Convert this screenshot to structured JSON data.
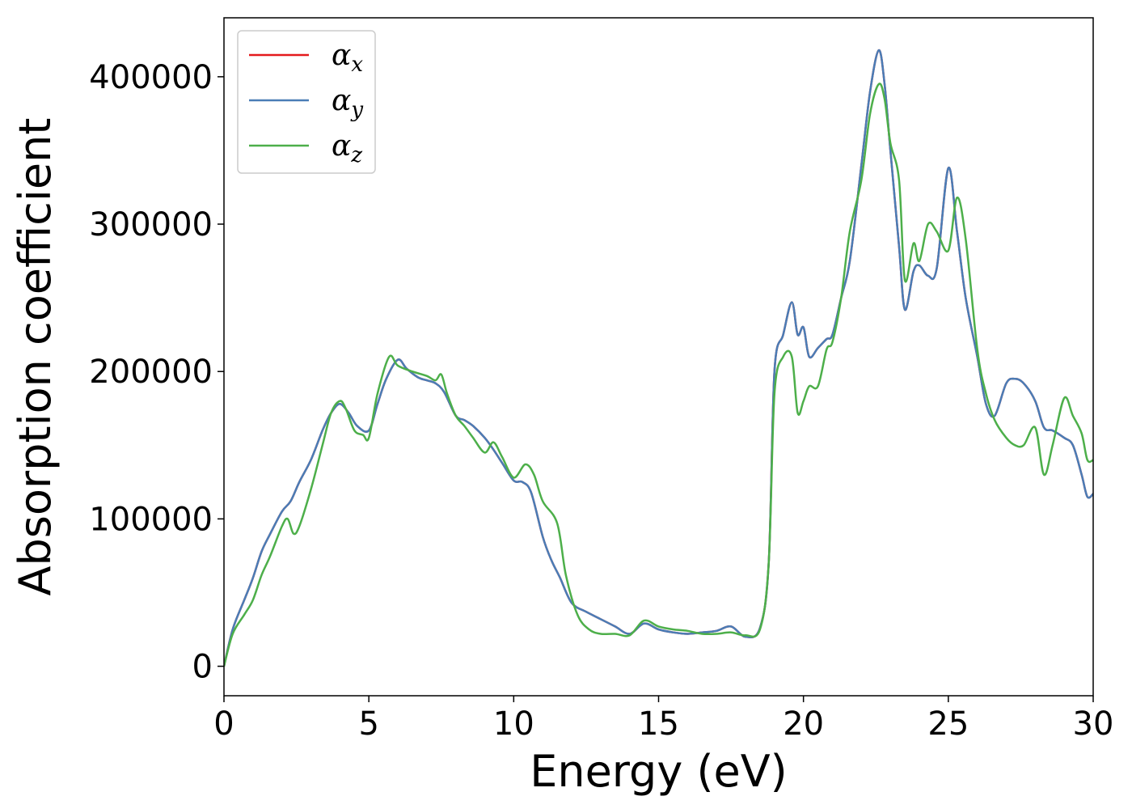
{
  "chart_data": {
    "type": "line",
    "xlabel": "Energy (eV)",
    "ylabel": "Absorption coefficient",
    "xlim": [
      0,
      30
    ],
    "ylim": [
      -20000,
      440000
    ],
    "xticks": [
      0,
      5,
      10,
      15,
      20,
      25,
      30
    ],
    "yticks": [
      0,
      100000,
      200000,
      300000,
      400000
    ],
    "grid": false,
    "legend_position": "top-left",
    "series": [
      {
        "name": "α",
        "sub": "x",
        "color": "#e41a1c",
        "x": [
          0,
          0.3,
          0.7,
          1.0,
          1.3,
          1.6,
          2.0,
          2.3,
          2.6,
          3.0,
          3.4,
          3.7,
          4.0,
          4.3,
          4.6,
          5.0,
          5.3,
          5.6,
          6.0,
          6.3,
          6.7,
          7.0,
          7.3,
          7.6,
          8.0,
          8.3,
          8.6,
          9.0,
          9.3,
          9.6,
          10.0,
          10.3,
          10.6,
          11.0,
          11.3,
          11.6,
          12.0,
          12.5,
          13.0,
          13.5,
          14.0,
          14.5,
          15.0,
          15.5,
          16.0,
          16.5,
          17.0,
          17.5,
          18.0,
          18.5,
          18.8,
          19.0,
          19.3,
          19.6,
          19.8,
          20.0,
          20.2,
          20.5,
          20.8,
          21.0,
          21.3,
          21.6,
          22.0,
          22.3,
          22.6,
          22.8,
          23.0,
          23.3,
          23.5,
          23.8,
          24.0,
          24.3,
          24.6,
          25.0,
          25.3,
          25.6,
          26.0,
          26.3,
          26.6,
          27.0,
          27.3,
          27.6,
          28.0,
          28.3,
          28.6,
          29.0,
          29.3,
          29.6,
          29.8,
          30.0
        ],
        "y": [
          0,
          25000,
          45000,
          60000,
          78000,
          90000,
          105000,
          112000,
          125000,
          140000,
          160000,
          172000,
          178000,
          172000,
          163000,
          160000,
          178000,
          195000,
          208000,
          202000,
          196000,
          194000,
          192000,
          186000,
          170000,
          167000,
          163000,
          155000,
          147000,
          138000,
          126000,
          125000,
          118000,
          88000,
          72000,
          60000,
          43000,
          37000,
          32000,
          27000,
          22000,
          29000,
          25000,
          23000,
          22000,
          23000,
          24000,
          27000,
          20000,
          26000,
          70000,
          200000,
          225000,
          247000,
          225000,
          230000,
          210000,
          216000,
          222000,
          225000,
          250000,
          275000,
          340000,
          390000,
          418000,
          395000,
          350000,
          285000,
          242000,
          268000,
          272000,
          265000,
          270000,
          338000,
          295000,
          250000,
          210000,
          178000,
          170000,
          192000,
          195000,
          192000,
          180000,
          162000,
          160000,
          155000,
          150000,
          130000,
          115000,
          117000
        ]
      },
      {
        "name": "α",
        "sub": "y",
        "color": "#4a7db6",
        "x": [
          0,
          0.3,
          0.7,
          1.0,
          1.3,
          1.6,
          2.0,
          2.3,
          2.6,
          3.0,
          3.4,
          3.7,
          4.0,
          4.3,
          4.6,
          5.0,
          5.3,
          5.6,
          6.0,
          6.3,
          6.7,
          7.0,
          7.3,
          7.6,
          8.0,
          8.3,
          8.6,
          9.0,
          9.3,
          9.6,
          10.0,
          10.3,
          10.6,
          11.0,
          11.3,
          11.6,
          12.0,
          12.5,
          13.0,
          13.5,
          14.0,
          14.5,
          15.0,
          15.5,
          16.0,
          16.5,
          17.0,
          17.5,
          18.0,
          18.5,
          18.8,
          19.0,
          19.3,
          19.6,
          19.8,
          20.0,
          20.2,
          20.5,
          20.8,
          21.0,
          21.3,
          21.6,
          22.0,
          22.3,
          22.6,
          22.8,
          23.0,
          23.3,
          23.5,
          23.8,
          24.0,
          24.3,
          24.6,
          25.0,
          25.3,
          25.6,
          26.0,
          26.3,
          26.6,
          27.0,
          27.3,
          27.6,
          28.0,
          28.3,
          28.6,
          29.0,
          29.3,
          29.6,
          29.8,
          30.0
        ],
        "y": [
          0,
          25000,
          45000,
          60000,
          78000,
          90000,
          105000,
          112000,
          125000,
          140000,
          160000,
          172000,
          178000,
          172000,
          163000,
          160000,
          178000,
          195000,
          208000,
          202000,
          196000,
          194000,
          192000,
          186000,
          170000,
          167000,
          163000,
          155000,
          147000,
          138000,
          126000,
          125000,
          118000,
          88000,
          72000,
          60000,
          43000,
          37000,
          32000,
          27000,
          22000,
          29000,
          25000,
          23000,
          22000,
          23000,
          24000,
          27000,
          20000,
          26000,
          70000,
          200000,
          225000,
          247000,
          225000,
          230000,
          210000,
          216000,
          222000,
          225000,
          250000,
          275000,
          340000,
          390000,
          418000,
          395000,
          350000,
          285000,
          242000,
          268000,
          272000,
          265000,
          270000,
          338000,
          295000,
          250000,
          210000,
          178000,
          170000,
          192000,
          195000,
          192000,
          180000,
          162000,
          160000,
          155000,
          150000,
          130000,
          115000,
          117000
        ]
      },
      {
        "name": "α",
        "sub": "z",
        "color": "#4daf4a",
        "x": [
          0,
          0.3,
          0.7,
          1.0,
          1.3,
          1.6,
          2.0,
          2.2,
          2.4,
          2.6,
          3.0,
          3.4,
          3.7,
          4.0,
          4.2,
          4.5,
          4.8,
          5.0,
          5.3,
          5.7,
          6.0,
          6.5,
          7.0,
          7.3,
          7.5,
          7.7,
          8.0,
          8.3,
          8.6,
          9.0,
          9.3,
          9.6,
          10.0,
          10.4,
          10.7,
          11.0,
          11.5,
          11.8,
          12.2,
          12.6,
          13.0,
          13.5,
          14.0,
          14.5,
          15.0,
          15.5,
          16.0,
          16.5,
          17.0,
          17.5,
          18.0,
          18.5,
          18.8,
          19.0,
          19.3,
          19.6,
          19.8,
          20.0,
          20.2,
          20.5,
          20.8,
          21.0,
          21.3,
          21.6,
          22.0,
          22.3,
          22.6,
          22.8,
          23.0,
          23.3,
          23.5,
          23.8,
          24.0,
          24.3,
          24.6,
          25.0,
          25.3,
          25.6,
          26.0,
          26.3,
          26.6,
          27.0,
          27.3,
          27.6,
          28.0,
          28.3,
          28.6,
          29.0,
          29.3,
          29.6,
          29.8,
          30.0
        ],
        "y": [
          0,
          22000,
          35000,
          45000,
          62000,
          75000,
          95000,
          100000,
          90000,
          95000,
          120000,
          150000,
          172000,
          180000,
          175000,
          160000,
          157000,
          155000,
          185000,
          210000,
          204000,
          200000,
          197000,
          194000,
          198000,
          185000,
          170000,
          163000,
          155000,
          145000,
          152000,
          142000,
          128000,
          137000,
          130000,
          112000,
          97000,
          62000,
          35000,
          25000,
          22000,
          22000,
          21000,
          31000,
          27000,
          25000,
          24000,
          22000,
          22000,
          23000,
          21000,
          25000,
          70000,
          185000,
          210000,
          210000,
          172000,
          180000,
          190000,
          190000,
          215000,
          220000,
          250000,
          295000,
          330000,
          375000,
          395000,
          385000,
          355000,
          330000,
          262000,
          287000,
          275000,
          300000,
          295000,
          282000,
          318000,
          290000,
          215000,
          185000,
          167000,
          155000,
          150000,
          150000,
          162000,
          130000,
          150000,
          182000,
          170000,
          158000,
          140000,
          140000
        ]
      }
    ]
  }
}
